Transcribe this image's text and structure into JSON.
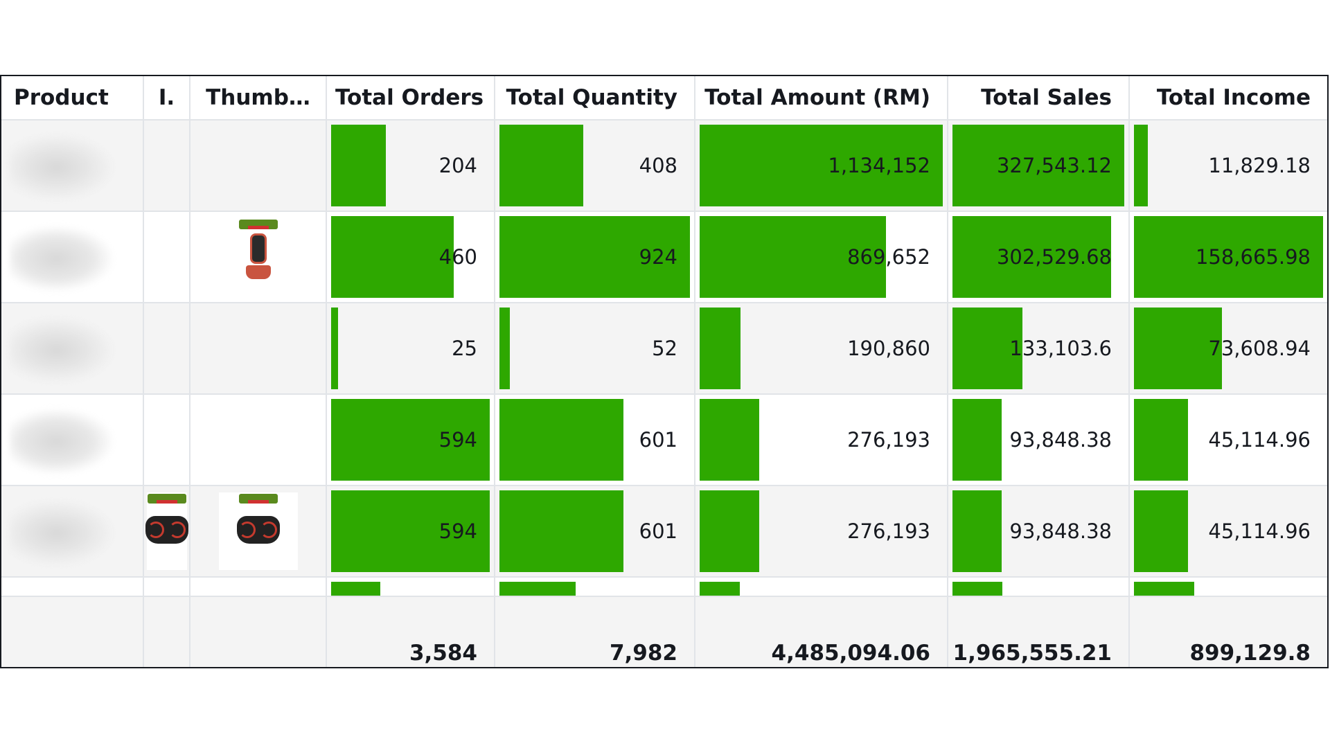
{
  "table": {
    "columns": [
      "Product",
      "I.",
      "Thumb…",
      "Total Orders",
      "Total Quantity",
      "Total Amount (RM)",
      "Total Sales",
      "Total Income"
    ],
    "rows": [
      {
        "orders": "204",
        "quantity": "408",
        "amount": "1,134,152",
        "sales": "327,543.12",
        "income": "11,829.18",
        "bars": {
          "orders": 0.343,
          "quantity": 0.441,
          "amount": 1.0,
          "sales": 1.0,
          "income": 0.075
        },
        "image": "",
        "thumbnail": ""
      },
      {
        "orders": "460",
        "quantity": "924",
        "amount": "869,652",
        "sales": "302,529.68",
        "income": "158,665.98",
        "bars": {
          "orders": 0.774,
          "quantity": 1.0,
          "amount": 0.767,
          "sales": 0.924,
          "income": 1.0
        },
        "image": "",
        "thumbnail": "massage-seat-image"
      },
      {
        "orders": "25",
        "quantity": "52",
        "amount": "190,860",
        "sales": "133,103.6",
        "income": "73,608.94",
        "bars": {
          "orders": 0.042,
          "quantity": 0.056,
          "amount": 0.168,
          "sales": 0.406,
          "income": 0.464
        },
        "image": "",
        "thumbnail": ""
      },
      {
        "orders": "594",
        "quantity": "601",
        "amount": "276,193",
        "sales": "93,848.38",
        "income": "45,114.96",
        "bars": {
          "orders": 1.0,
          "quantity": 0.65,
          "amount": 0.244,
          "sales": 0.287,
          "income": 0.284
        },
        "image": "",
        "thumbnail": ""
      },
      {
        "orders": "594",
        "quantity": "601",
        "amount": "276,193",
        "sales": "93,848.38",
        "income": "45,114.96",
        "bars": {
          "orders": 1.0,
          "quantity": 0.65,
          "amount": 0.244,
          "sales": 0.287,
          "income": 0.284
        },
        "image": "massage-cushion-image",
        "thumbnail": "massage-cushion-image"
      }
    ],
    "partial_row_bars": {
      "orders": 0.31,
      "quantity": 0.4,
      "amount": 0.165,
      "sales": 0.29,
      "income": 0.32
    },
    "totals": {
      "orders": "3,584",
      "quantity": "7,982",
      "amount": "4,485,094.06",
      "sales": "1,965,555.21",
      "income": "899,129.8"
    },
    "colors": {
      "bar": "#2ea800",
      "stripe": "#f4f4f4",
      "border": "#e1e4e8"
    }
  }
}
